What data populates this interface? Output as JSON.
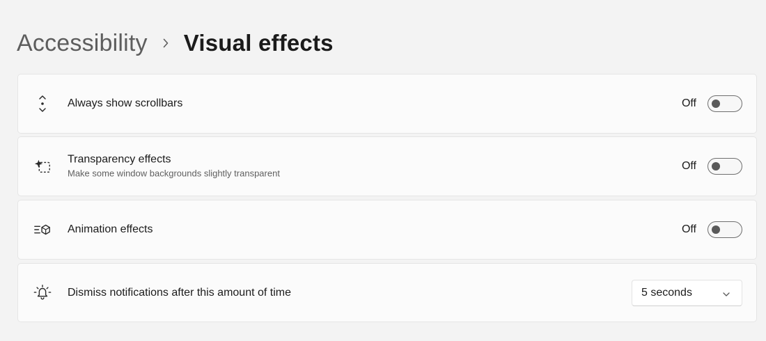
{
  "breadcrumb": {
    "parent": "Accessibility",
    "current": "Visual effects",
    "separator_icon": "chevron-right-icon"
  },
  "settings": [
    {
      "title": "Always show scrollbars",
      "icon": "scrollbar-icon",
      "control": "toggle",
      "state_label": "Off",
      "on": false
    },
    {
      "title": "Transparency effects",
      "subtitle": "Make some window backgrounds slightly transparent",
      "icon": "transparency-icon",
      "control": "toggle",
      "state_label": "Off",
      "on": false
    },
    {
      "title": "Animation effects",
      "icon": "animation-icon",
      "control": "toggle",
      "state_label": "Off",
      "on": false
    },
    {
      "title": "Dismiss notifications after this amount of time",
      "icon": "notification-bell-icon",
      "control": "dropdown",
      "selected": "5 seconds"
    }
  ]
}
